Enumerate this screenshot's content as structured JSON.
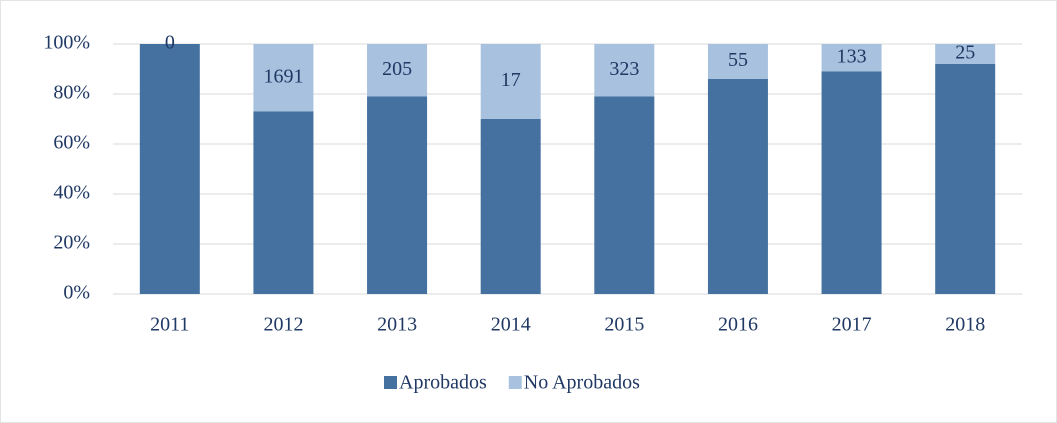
{
  "chart_data": {
    "type": "stacked_bar_percent",
    "categories": [
      "2011",
      "2012",
      "2013",
      "2014",
      "2015",
      "2016",
      "2017",
      "2018"
    ],
    "series": [
      {
        "name": "Aprobados",
        "color": "#44719f",
        "values": [
          100,
          73,
          79,
          70,
          79,
          86,
          89,
          92
        ]
      },
      {
        "name": "No Aprobados",
        "color": "#a7c1de",
        "values": [
          0,
          27,
          21,
          30,
          21,
          14,
          11,
          8
        ],
        "data_labels": [
          0,
          1691,
          205,
          17,
          323,
          55,
          133,
          25
        ]
      }
    ],
    "ylim": [
      0,
      100
    ],
    "yticks": [
      {
        "value": 0,
        "label": "0%"
      },
      {
        "value": 20,
        "label": "20%"
      },
      {
        "value": 40,
        "label": "40%"
      },
      {
        "value": 60,
        "label": "60%"
      },
      {
        "value": 80,
        "label": "80%"
      },
      {
        "value": 100,
        "label": "100%"
      }
    ],
    "grid": true,
    "legend": "bottom"
  }
}
